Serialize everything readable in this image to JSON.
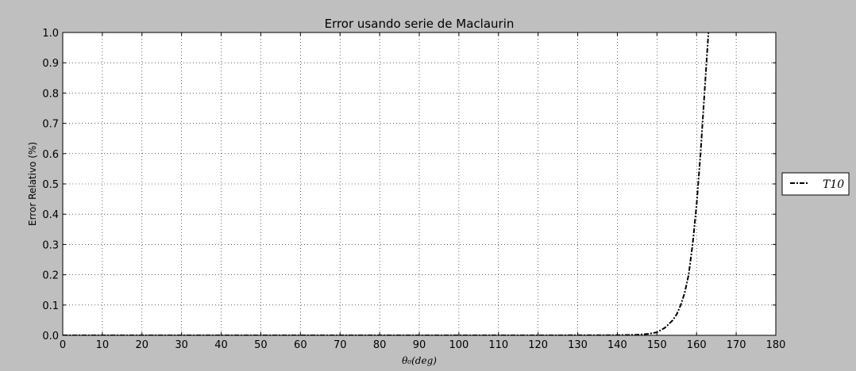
{
  "chart_data": {
    "type": "line",
    "title": "Error usando serie de Maclaurin",
    "xlabel": "θ₀(deg)",
    "ylabel": "Error Relativo (%)",
    "xlim": [
      0,
      180
    ],
    "ylim": [
      0,
      1.0
    ],
    "xticks": [
      0,
      10,
      20,
      30,
      40,
      50,
      60,
      70,
      80,
      90,
      100,
      110,
      120,
      130,
      140,
      150,
      160,
      170,
      180
    ],
    "yticks": [
      "0.0",
      "0.1",
      "0.2",
      "0.3",
      "0.4",
      "0.5",
      "0.6",
      "0.7",
      "0.8",
      "0.9",
      "1.0"
    ],
    "grid": true,
    "legend_position": "outside-right",
    "series": [
      {
        "name": "T10",
        "color": "#000000",
        "style": "dash-dot",
        "x": [
          0,
          20,
          40,
          60,
          80,
          100,
          120,
          140,
          145,
          148,
          150,
          152,
          154,
          155,
          156,
          157,
          158,
          159,
          160,
          161,
          162,
          163
        ],
        "y": [
          0,
          0,
          0,
          0,
          0,
          0,
          0,
          0.0005,
          0.002,
          0.005,
          0.01,
          0.025,
          0.05,
          0.07,
          0.1,
          0.14,
          0.2,
          0.3,
          0.43,
          0.6,
          0.8,
          1.0
        ]
      }
    ]
  }
}
